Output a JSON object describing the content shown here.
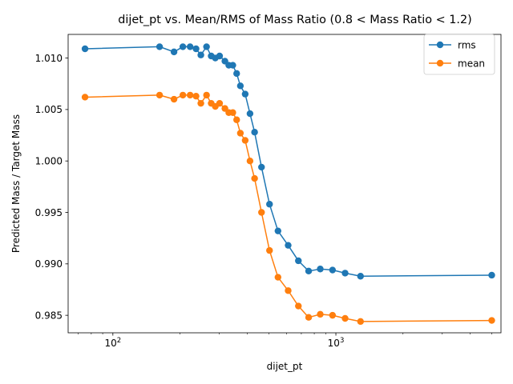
{
  "chart_data": {
    "type": "line",
    "title": "dijet_pt vs. Mean/RMS of Mass Ratio (0.8 < Mass Ratio < 1.2)",
    "xlabel": "dijet_pt",
    "ylabel": "Predicted Mass / Target Mass",
    "x_scale": "log",
    "xlim": [
      63,
      5500
    ],
    "ylim": [
      0.9833,
      1.0123
    ],
    "x_tick_labels": [
      {
        "value": 100,
        "base": "10",
        "exp": "2"
      },
      {
        "value": 1000,
        "base": "10",
        "exp": "3"
      }
    ],
    "y_ticks": [
      0.985,
      0.99,
      0.995,
      1.0,
      1.005,
      1.01
    ],
    "y_tick_labels": [
      "0.985",
      "0.990",
      "0.995",
      "1.000",
      "1.005",
      "1.010"
    ],
    "grid": false,
    "legend_position": "upper right",
    "x": [
      75,
      162,
      188,
      206,
      222,
      236,
      248,
      263,
      276,
      288,
      301,
      318,
      331,
      345,
      359,
      373,
      392,
      412,
      432,
      464,
      504,
      550,
      611,
      679,
      755,
      851,
      966,
      1100,
      1290,
      5000
    ],
    "series": [
      {
        "name": "rms",
        "color": "#1f77b4",
        "values": [
          1.0109,
          1.0111,
          1.0106,
          1.0111,
          1.0111,
          1.0109,
          1.0103,
          1.0111,
          1.0102,
          1.01,
          1.0102,
          1.0097,
          1.0093,
          1.0093,
          1.0085,
          1.0073,
          1.0065,
          1.0046,
          1.0028,
          0.9994,
          0.9958,
          0.9932,
          0.9918,
          0.9903,
          0.9893,
          0.9895,
          0.9894,
          0.9891,
          0.9888,
          0.9889
        ]
      },
      {
        "name": "mean",
        "color": "#ff7f0e",
        "values": [
          1.0062,
          1.0064,
          1.006,
          1.0064,
          1.0064,
          1.0063,
          1.0056,
          1.0064,
          1.0056,
          1.0053,
          1.0056,
          1.0051,
          1.0047,
          1.0047,
          1.004,
          1.0027,
          1.002,
          1.0,
          0.9983,
          0.995,
          0.9913,
          0.9887,
          0.9874,
          0.9859,
          0.9848,
          0.9851,
          0.985,
          0.9847,
          0.9844,
          0.9845
        ]
      }
    ]
  }
}
